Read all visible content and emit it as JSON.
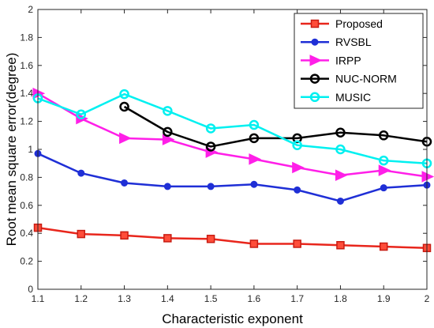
{
  "chart_data": {
    "type": "line",
    "title": "",
    "xlabel": "Characteristic exponent",
    "ylabel": "Root mean square error(degree)",
    "xlim": [
      1.1,
      2
    ],
    "ylim": [
      0,
      2
    ],
    "x_ticks": [
      "1.1",
      "1.2",
      "1.3",
      "1.4",
      "1.5",
      "1.6",
      "1.7",
      "1.8",
      "1.9",
      "2"
    ],
    "y_ticks": [
      "0",
      "0.2",
      "0.4",
      "0.6",
      "0.8",
      "1",
      "1.2",
      "1.4",
      "1.6",
      "1.8",
      "2"
    ],
    "grid": false,
    "legend_position": "top-right",
    "series": [
      {
        "name": "Proposed",
        "color": "#e8261c",
        "marker": "square",
        "x": [
          1.1,
          1.2,
          1.3,
          1.4,
          1.5,
          1.6,
          1.7,
          1.8,
          1.9,
          2
        ],
        "y": [
          0.44,
          0.395,
          0.385,
          0.365,
          0.36,
          0.325,
          0.325,
          0.315,
          0.305,
          0.295
        ]
      },
      {
        "name": "RVSBL",
        "color": "#1f2fd6",
        "marker": "circle",
        "x": [
          1.1,
          1.2,
          1.3,
          1.4,
          1.5,
          1.6,
          1.7,
          1.8,
          1.9,
          2
        ],
        "y": [
          0.97,
          0.83,
          0.76,
          0.735,
          0.735,
          0.75,
          0.71,
          0.63,
          0.725,
          0.745
        ]
      },
      {
        "name": "IRPP",
        "color": "#ff1fe8",
        "marker": "triangle-right",
        "x": [
          1.1,
          1.2,
          1.3,
          1.4,
          1.5,
          1.6,
          1.7,
          1.8,
          1.9,
          2
        ],
        "y": [
          1.4,
          1.22,
          1.08,
          1.07,
          0.98,
          0.93,
          0.87,
          0.815,
          0.85,
          0.805
        ]
      },
      {
        "name": "NUC-NORM",
        "color": "#000000",
        "marker": "circle-open",
        "x": [
          1.3,
          1.4,
          1.5,
          1.6,
          1.7,
          1.8,
          1.9,
          2
        ],
        "y": [
          1.305,
          1.125,
          1.02,
          1.08,
          1.08,
          1.12,
          1.1,
          1.055
        ]
      },
      {
        "name": "MUSIC",
        "color": "#00f0f0",
        "marker": "circle-open",
        "x": [
          1.1,
          1.2,
          1.3,
          1.4,
          1.5,
          1.6,
          1.7,
          1.8,
          1.9,
          2
        ],
        "y": [
          1.365,
          1.25,
          1.395,
          1.275,
          1.15,
          1.175,
          1.03,
          1.0,
          0.92,
          0.9
        ]
      }
    ]
  }
}
